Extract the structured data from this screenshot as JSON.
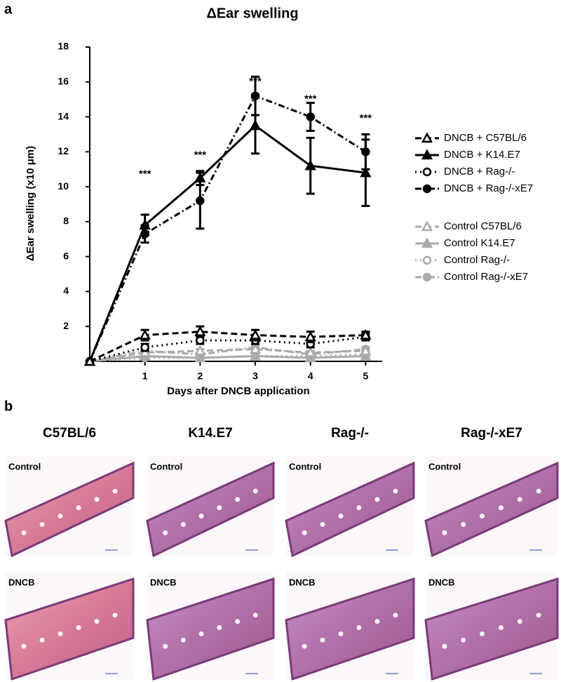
{
  "panel_a_label": "a",
  "chart_data": {
    "type": "line",
    "title": "ΔEar swelling",
    "x_label": "Days after DNCB application",
    "y_label": "ΔEar swelling (x10 μm)",
    "x": [
      0,
      1,
      2,
      3,
      4,
      5
    ],
    "xlim": [
      0,
      5.3
    ],
    "xticks": [
      1,
      2,
      3,
      4,
      5
    ],
    "ylim": [
      0,
      18
    ],
    "yticks": [
      2,
      4,
      6,
      8,
      10,
      12,
      14,
      16,
      18
    ],
    "series": [
      {
        "name": "DNCB + C57BL/6",
        "color": "#000000",
        "line_style": "dashed",
        "marker": "triangle",
        "marker_fill": "open",
        "values": [
          0,
          1.5,
          1.7,
          1.5,
          1.4,
          1.5
        ],
        "errors": [
          0,
          0.3,
          0.3,
          0.3,
          0.3,
          0.2
        ]
      },
      {
        "name": "DNCB + K14.E7",
        "color": "#000000",
        "line_style": "solid",
        "marker": "triangle",
        "marker_fill": "filled",
        "values": [
          0,
          7.8,
          10.5,
          13.5,
          11.2,
          10.8
        ],
        "errors": [
          0,
          0.6,
          0.4,
          1.6,
          1.6,
          1.9
        ]
      },
      {
        "name": "DNCB + Rag-/-",
        "color": "#000000",
        "line_style": "dotted",
        "marker": "circle",
        "marker_fill": "open",
        "values": [
          0,
          0.8,
          1.2,
          1.2,
          1.0,
          1.4
        ],
        "errors": [
          0,
          0.2,
          0.2,
          0.2,
          0.2,
          0.2
        ]
      },
      {
        "name": "DNCB + Rag-/-xE7",
        "color": "#000000",
        "line_style": "dashdot",
        "marker": "circle",
        "marker_fill": "filled",
        "values": [
          0,
          7.3,
          9.2,
          15.2,
          14.0,
          12.0
        ],
        "errors": [
          0,
          0.5,
          1.6,
          1.1,
          0.8,
          1.0
        ]
      },
      {
        "name": "Control C57BL/6",
        "color": "#aaaaaa",
        "line_style": "dashed",
        "marker": "triangle",
        "marker_fill": "open",
        "values": [
          0,
          0.5,
          0.6,
          0.7,
          0.5,
          0.6
        ],
        "errors": [
          0,
          0.1,
          0.1,
          0.1,
          0.1,
          0.1
        ]
      },
      {
        "name": "Control K14.E7",
        "color": "#aaaaaa",
        "line_style": "solid",
        "marker": "triangle",
        "marker_fill": "filled",
        "values": [
          0,
          0.3,
          0.2,
          0.3,
          0.2,
          0.3
        ],
        "errors": [
          0,
          0.1,
          0.1,
          0.1,
          0.1,
          0.1
        ]
      },
      {
        "name": "Control Rag-/-",
        "color": "#aaaaaa",
        "line_style": "dotted",
        "marker": "circle",
        "marker_fill": "open",
        "values": [
          0,
          0.2,
          0.2,
          0.3,
          0.3,
          0.4
        ],
        "errors": [
          0,
          0.1,
          0.1,
          0.1,
          0.1,
          0.1
        ]
      },
      {
        "name": "Control Rag-/-xE7",
        "color": "#aaaaaa",
        "line_style": "dashdot",
        "marker": "circle",
        "marker_fill": "filled",
        "values": [
          0,
          0.6,
          0.4,
          0.8,
          0.4,
          0.7
        ],
        "errors": [
          0,
          0.1,
          0.1,
          0.1,
          0.1,
          0.1
        ]
      }
    ],
    "annotations": [
      {
        "text": "***",
        "x": 1,
        "y": 10.7
      },
      {
        "text": "***",
        "x": 2,
        "y": 11.8
      },
      {
        "text": "***",
        "x": 3,
        "y": 16.0
      },
      {
        "text": "***",
        "x": 4,
        "y": 15.0
      },
      {
        "text": "***",
        "x": 5,
        "y": 13.9
      }
    ]
  },
  "panel_b": {
    "label": "b",
    "columns": [
      {
        "title": "C57BL/6",
        "rows": [
          "Control",
          "DNCB"
        ]
      },
      {
        "title": "K14.E7",
        "rows": [
          "Control",
          "DNCB"
        ]
      },
      {
        "title": "Rag-/-",
        "rows": [
          "Control",
          "DNCB"
        ]
      },
      {
        "title": "Rag-/-xE7",
        "rows": [
          "Control",
          "DNCB"
        ]
      }
    ]
  }
}
